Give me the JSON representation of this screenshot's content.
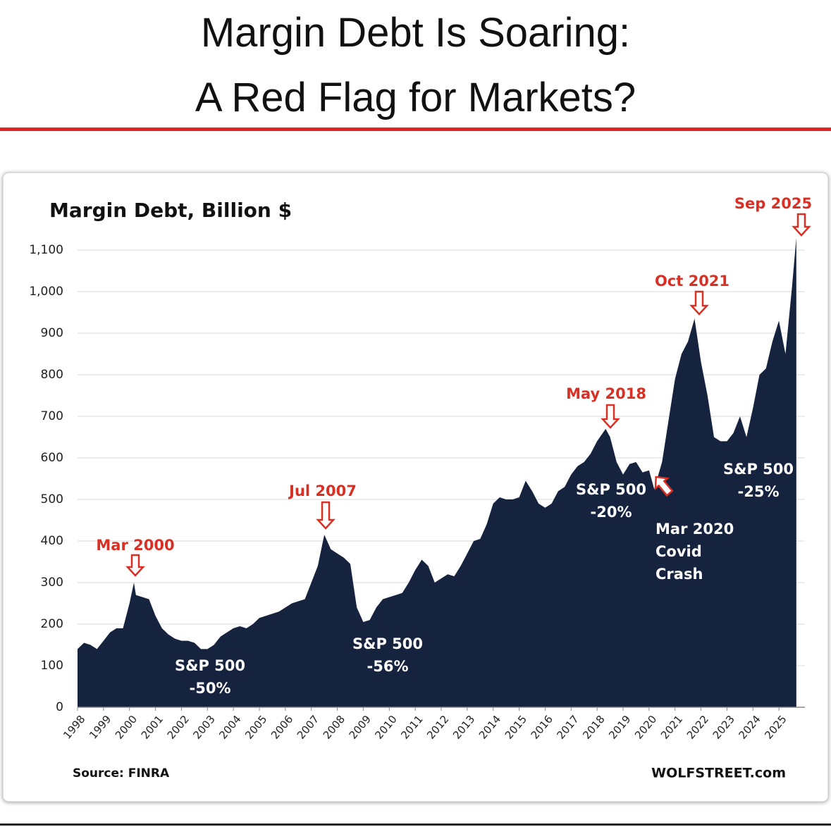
{
  "header": {
    "title_lines": [
      "Margin Debt Is Soaring:",
      "A Red Flag for Markets?"
    ]
  },
  "chart_data": {
    "type": "area",
    "title": "Margin Debt, Billion $",
    "color": "#16233f",
    "x": [
      1998.0,
      1998.25,
      1998.5,
      1998.75,
      1999.0,
      1999.25,
      1999.5,
      1999.75,
      2000.0,
      2000.17,
      2000.25,
      2000.5,
      2000.75,
      2001.0,
      2001.25,
      2001.5,
      2001.75,
      2002.0,
      2002.25,
      2002.5,
      2002.75,
      2003.0,
      2003.25,
      2003.5,
      2003.75,
      2004.0,
      2004.25,
      2004.5,
      2004.75,
      2005.0,
      2005.25,
      2005.5,
      2005.75,
      2006.0,
      2006.25,
      2006.5,
      2006.75,
      2007.0,
      2007.25,
      2007.5,
      2007.75,
      2008.0,
      2008.25,
      2008.5,
      2008.75,
      2009.0,
      2009.25,
      2009.5,
      2009.75,
      2010.0,
      2010.25,
      2010.5,
      2010.75,
      2011.0,
      2011.25,
      2011.5,
      2011.75,
      2012.0,
      2012.25,
      2012.5,
      2012.75,
      2013.0,
      2013.25,
      2013.5,
      2013.75,
      2014.0,
      2014.25,
      2014.5,
      2014.75,
      2015.0,
      2015.25,
      2015.5,
      2015.75,
      2016.0,
      2016.25,
      2016.5,
      2016.75,
      2017.0,
      2017.25,
      2017.5,
      2017.75,
      2018.0,
      2018.33,
      2018.5,
      2018.75,
      2019.0,
      2019.25,
      2019.5,
      2019.75,
      2020.0,
      2020.2,
      2020.5,
      2020.75,
      2021.0,
      2021.25,
      2021.5,
      2021.75,
      2022.0,
      2022.25,
      2022.5,
      2022.75,
      2023.0,
      2023.25,
      2023.5,
      2023.75,
      2024.0,
      2024.25,
      2024.5,
      2024.75,
      2025.0,
      2025.25,
      2025.5,
      2025.67
    ],
    "values": [
      140,
      155,
      150,
      140,
      160,
      180,
      190,
      190,
      250,
      300,
      270,
      265,
      260,
      220,
      190,
      175,
      165,
      160,
      160,
      155,
      140,
      140,
      150,
      170,
      180,
      190,
      195,
      190,
      200,
      215,
      220,
      225,
      230,
      240,
      250,
      255,
      260,
      300,
      340,
      415,
      380,
      370,
      360,
      345,
      240,
      205,
      210,
      240,
      260,
      265,
      270,
      275,
      300,
      330,
      355,
      340,
      300,
      310,
      320,
      315,
      340,
      370,
      400,
      405,
      440,
      490,
      505,
      500,
      500,
      505,
      545,
      520,
      490,
      480,
      490,
      520,
      530,
      560,
      580,
      590,
      610,
      640,
      670,
      650,
      590,
      560,
      585,
      590,
      565,
      570,
      525,
      590,
      690,
      790,
      850,
      880,
      935,
      830,
      750,
      650,
      640,
      640,
      660,
      700,
      650,
      720,
      800,
      815,
      880,
      930,
      850,
      1010,
      1130
    ],
    "xlim": [
      1998,
      2026
    ],
    "xticks": [
      1998,
      1999,
      2000,
      2001,
      2002,
      2003,
      2004,
      2005,
      2006,
      2007,
      2008,
      2009,
      2010,
      2011,
      2012,
      2013,
      2014,
      2015,
      2016,
      2017,
      2018,
      2019,
      2020,
      2021,
      2022,
      2023,
      2024,
      2025
    ],
    "ylim": [
      0,
      1100
    ],
    "yticks": [
      0,
      100,
      200,
      300,
      400,
      500,
      600,
      700,
      800,
      900,
      {
        "value": 1000,
        "label": "1,000"
      },
      {
        "value": 1100,
        "label": "1,100"
      }
    ],
    "grid": true,
    "grid_color": "#d9d9d9",
    "annotations": [
      {
        "lines": [
          "Mar 2000"
        ],
        "color": "#d93025"
      },
      {
        "lines": [
          "Jul 2007"
        ],
        "color": "#d93025"
      },
      {
        "lines": [
          "May 2018"
        ],
        "color": "#d93025"
      },
      {
        "lines": [
          "Oct 2021"
        ],
        "color": "#d93025"
      },
      {
        "lines": [
          "Sep 2025"
        ],
        "color": "#d93025"
      },
      {
        "lines": [
          "S&P 500",
          "-50%"
        ],
        "color": "#ffffff"
      },
      {
        "lines": [
          "S&P 500",
          "-56%"
        ],
        "color": "#ffffff"
      },
      {
        "lines": [
          "S&P 500",
          "-20%"
        ],
        "color": "#ffffff"
      },
      {
        "lines": [
          "S&P 500",
          "-25%"
        ],
        "color": "#ffffff"
      },
      {
        "lines": [
          "Mar 2020",
          "Covid",
          "Crash"
        ],
        "color": "#ffffff"
      }
    ],
    "source": "Source: FINRA",
    "credit": "WOLFSTREET.com"
  }
}
